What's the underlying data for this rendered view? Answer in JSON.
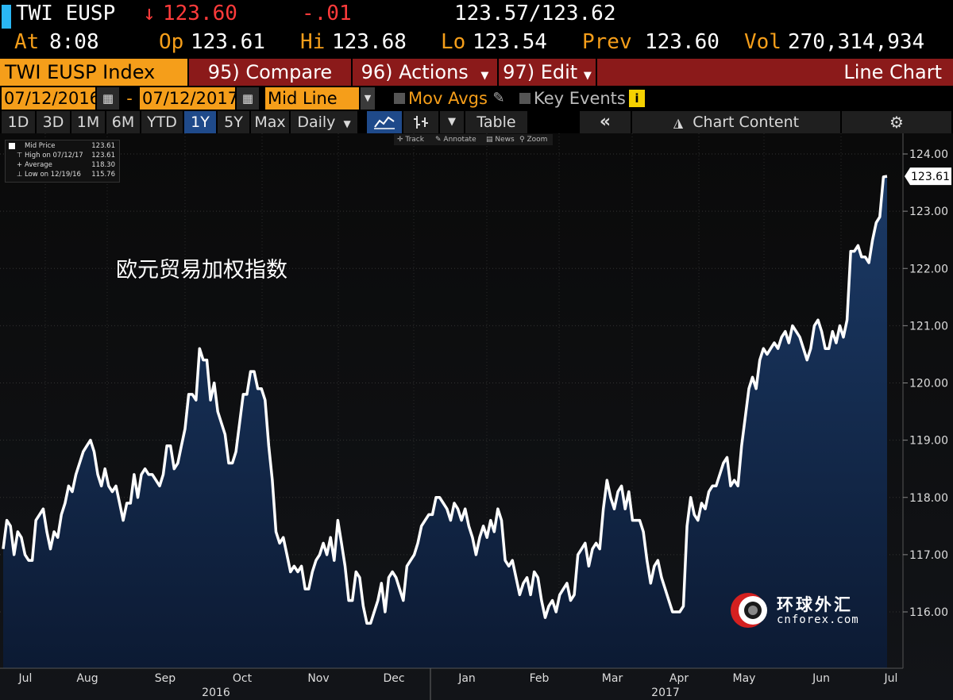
{
  "quote": {
    "ticker": "TWI EUSP",
    "last": "123.60",
    "change": "-.01",
    "bid_ask": "123.57/123.62",
    "at_label": "At",
    "at_time": "8:08",
    "op_label": "Op",
    "op": "123.61",
    "hi_label": "Hi",
    "hi": "123.68",
    "lo_label": "Lo",
    "lo": "123.54",
    "prev_label": "Prev",
    "prev": "123.60",
    "vol_label": "Vol",
    "vol": "270,314,934"
  },
  "toolbar": {
    "security": "TWI EUSP Index",
    "compare": "95) Compare",
    "actions": "96) Actions",
    "edit": "97) Edit",
    "chart_type": "Line Chart",
    "start_date": "07/12/2016",
    "date_sep": "-",
    "end_date": "07/12/2017",
    "field": "Mid Line",
    "mov_avgs": "Mov Avgs",
    "key_events": "Key Events",
    "periods": [
      "1D",
      "3D",
      "1M",
      "6M",
      "YTD",
      "1Y",
      "5Y",
      "Max"
    ],
    "active_period": "1Y",
    "frequency": "Daily",
    "table": "Table",
    "chart_content": "Chart Content",
    "chart_tools": [
      "Track",
      "Annotate",
      "News",
      "Zoom"
    ]
  },
  "legend": {
    "rows": [
      {
        "label": "Mid Price",
        "value": "123.61"
      },
      {
        "label": "High on 07/12/17",
        "value": "123.61"
      },
      {
        "label": "Average",
        "value": "118.30"
      },
      {
        "label": "Low on 12/19/16",
        "value": "115.76"
      }
    ]
  },
  "overlay": {
    "title_cn": "欧元贸易加权指数",
    "watermark_cn": "环球外汇",
    "watermark_site": "cnforex.com"
  },
  "colors": {
    "amber": "#f59e1a",
    "red_bar": "#8b1a1a",
    "orange_cell": "#f59e1a",
    "down": "#ff3b3b",
    "line": "#ffffff",
    "fill_top": "#1b3a66",
    "fill_bottom": "#0c1a33"
  },
  "chart_data": {
    "type": "area",
    "title": "",
    "ylim": [
      115.0,
      124.4
    ],
    "y_ticks": [
      "124.00",
      "123.00",
      "122.00",
      "121.00",
      "120.00",
      "119.00",
      "118.00",
      "117.00",
      "116.00"
    ],
    "last_value_label": "123.61",
    "x_month_labels": [
      "Jul",
      "Aug",
      "Sep",
      "Oct",
      "Nov",
      "Dec",
      "Jan",
      "Feb",
      "Mar",
      "Apr",
      "May",
      "Jun",
      "Jul"
    ],
    "x_year_labels": [
      "2016",
      "2017"
    ],
    "series": [
      {
        "x_start": "2016-07-12",
        "x_end": "2017-07-12",
        "values": [
          117.1,
          117.6,
          117.5,
          117.0,
          117.4,
          117.3,
          117.0,
          116.9,
          116.9,
          117.6,
          117.7,
          117.8,
          117.4,
          117.1,
          117.4,
          117.3,
          117.7,
          117.9,
          118.2,
          118.1,
          118.4,
          118.6,
          118.8,
          118.9,
          119.0,
          118.8,
          118.4,
          118.2,
          118.5,
          118.2,
          118.1,
          118.2,
          117.9,
          117.6,
          117.9,
          117.9,
          118.4,
          118.0,
          118.4,
          118.5,
          118.4,
          118.4,
          118.3,
          118.2,
          118.4,
          118.9,
          118.9,
          118.5,
          118.6,
          118.9,
          119.2,
          119.8,
          119.8,
          119.7,
          120.6,
          120.4,
          120.4,
          119.7,
          120.0,
          119.5,
          119.3,
          119.1,
          118.6,
          118.6,
          118.8,
          119.3,
          119.8,
          119.8,
          120.2,
          120.2,
          119.9,
          119.9,
          119.7,
          118.9,
          118.3,
          117.4,
          117.2,
          117.3,
          117.0,
          116.7,
          116.8,
          116.7,
          116.8,
          116.4,
          116.4,
          116.7,
          116.9,
          117.0,
          117.2,
          117.0,
          117.3,
          116.9,
          117.6,
          117.2,
          116.8,
          116.2,
          116.2,
          116.7,
          116.6,
          116.1,
          115.8,
          115.8,
          116.0,
          116.2,
          116.5,
          116.0,
          116.6,
          116.7,
          116.6,
          116.4,
          116.2,
          116.8,
          116.9,
          117.0,
          117.2,
          117.5,
          117.6,
          117.7,
          117.7,
          118.0,
          118.0,
          117.9,
          117.8,
          117.6,
          117.9,
          117.8,
          117.6,
          117.8,
          117.5,
          117.3,
          117.0,
          117.3,
          117.5,
          117.3,
          117.6,
          117.4,
          117.8,
          117.6,
          116.9,
          116.8,
          116.9,
          116.6,
          116.3,
          116.5,
          116.6,
          116.3,
          116.7,
          116.6,
          116.2,
          115.9,
          116.1,
          116.2,
          116.0,
          116.3,
          116.4,
          116.5,
          116.2,
          116.3,
          117.0,
          117.1,
          117.2,
          116.8,
          117.1,
          117.2,
          117.1,
          117.8,
          118.3,
          118.0,
          117.8,
          118.1,
          118.2,
          117.8,
          118.1,
          117.6,
          117.6,
          117.6,
          117.4,
          116.9,
          116.5,
          116.8,
          116.9,
          116.6,
          116.4,
          116.2,
          116.0,
          116.0,
          116.0,
          116.1,
          117.5,
          118.0,
          117.7,
          117.6,
          117.9,
          117.8,
          118.1,
          118.2,
          118.2,
          118.4,
          118.6,
          118.7,
          118.2,
          118.3,
          118.2,
          118.9,
          119.4,
          119.9,
          120.1,
          119.9,
          120.4,
          120.6,
          120.5,
          120.6,
          120.7,
          120.6,
          120.8,
          120.9,
          120.7,
          121.0,
          120.9,
          120.8,
          120.6,
          120.4,
          120.6,
          121.0,
          121.1,
          120.9,
          120.6,
          120.6,
          120.9,
          120.7,
          121.0,
          120.8,
          121.1,
          122.3,
          122.3,
          122.4,
          122.2,
          122.2,
          122.1,
          122.5,
          122.8,
          122.9,
          123.6,
          123.61
        ]
      }
    ]
  }
}
